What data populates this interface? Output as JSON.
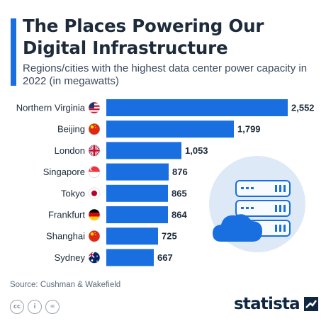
{
  "header": {
    "title": "The Places Powering Our Digital Infrastructure",
    "subtitle": "Regions/cities with the highest data center power capacity in 2022 (in megawatts)"
  },
  "chart_data": {
    "type": "bar",
    "orientation": "horizontal",
    "categories": [
      "Northern Virginia",
      "Beijing",
      "London",
      "Singapore",
      "Tokyo",
      "Frankfurt",
      "Shanghai",
      "Sydney"
    ],
    "values": [
      2552,
      1799,
      1053,
      876,
      865,
      864,
      725,
      667
    ],
    "value_labels": [
      "2,552",
      "1,799",
      "1,053",
      "876",
      "865",
      "864",
      "725",
      "667"
    ],
    "flags": [
      "us-flag-icon",
      "china-flag-icon",
      "uk-flag-icon",
      "singapore-flag-icon",
      "japan-flag-icon",
      "germany-flag-icon",
      "china-flag-icon",
      "australia-flag-icon"
    ],
    "title": "The Places Powering Our Digital Infrastructure",
    "xlabel": "",
    "ylabel": "",
    "xlim": [
      0,
      2552
    ],
    "grid": false,
    "bar_color": "#1a6fe0"
  },
  "footer": {
    "source": "Source: Cushman & Wakefield",
    "license": [
      "cc",
      "i",
      "="
    ],
    "brand": "statista"
  },
  "colors": {
    "accent": "#1a6fe0",
    "title": "#1d2b3a",
    "illustration_fill": "#cfe3fb",
    "illustration_stroke": "#1a6fe0"
  }
}
